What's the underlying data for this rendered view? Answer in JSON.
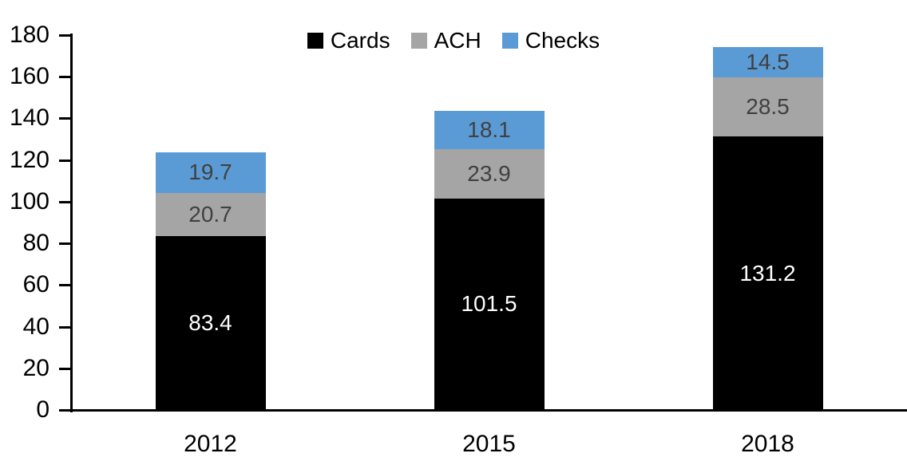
{
  "chart_data": {
    "type": "bar",
    "stacked": true,
    "title": "",
    "xlabel": "",
    "ylabel": "",
    "categories": [
      "2012",
      "2015",
      "2018"
    ],
    "series": [
      {
        "name": "Cards",
        "color": "#000000",
        "label_color": "#FFFFFF",
        "values": [
          83.4,
          101.5,
          131.2
        ]
      },
      {
        "name": "ACH",
        "color": "#A5A5A5",
        "label_color": "#404040",
        "values": [
          20.7,
          23.9,
          28.5
        ]
      },
      {
        "name": "Checks",
        "color": "#5B9BD5",
        "label_color": "#404040",
        "values": [
          19.7,
          18.1,
          14.5
        ]
      }
    ],
    "ylim": [
      0,
      180
    ],
    "y_ticks": [
      0,
      20,
      40,
      60,
      80,
      100,
      120,
      140,
      160,
      180
    ],
    "grid": false,
    "legend_position": "top",
    "axis_color": "#000000"
  }
}
